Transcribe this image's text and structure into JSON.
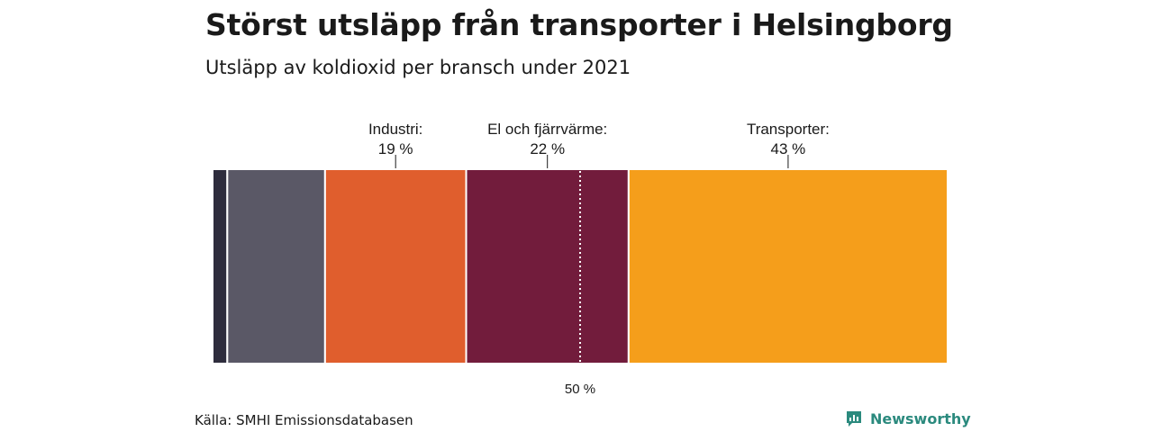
{
  "title": "Störst utsläpp från transporter i Helsingborg",
  "subtitle": "Utsläpp av koldioxid per bransch under 2021",
  "source": "Källa: SMHI Emissionsdatabasen",
  "brand": {
    "name": "Newsworthy",
    "icon": "newsworthy-logo-icon",
    "color": "#2b8a7e"
  },
  "chart_data": {
    "type": "bar",
    "orientation": "horizontal-stacked",
    "title": "Störst utsläpp från transporter i Helsingborg",
    "subtitle": "Utsläpp av koldioxid per bransch under 2021",
    "unit": "%",
    "xlim": [
      0,
      100
    ],
    "segments": [
      {
        "label": "",
        "value": 2,
        "color": "#2e2d3d"
      },
      {
        "label": "",
        "value": 13.3,
        "color": "#5a5866"
      },
      {
        "label": "Industri:",
        "value_label": "19 %",
        "value": 19.2,
        "color": "#e05e2d"
      },
      {
        "label": "El och fjärrvärme:",
        "value_label": "22 %",
        "value": 22.1,
        "color": "#721c3c"
      },
      {
        "label": "Transporter:",
        "value_label": "43 %",
        "value": 43.4,
        "color": "#f59e1b"
      }
    ],
    "reference_line": {
      "value": 50,
      "label": "50 %"
    }
  }
}
